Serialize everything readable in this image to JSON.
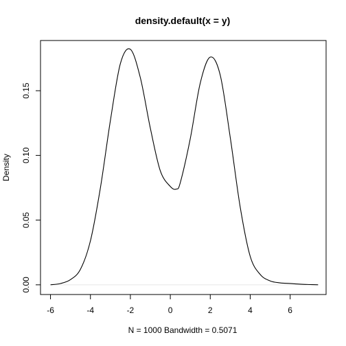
{
  "chart_data": {
    "type": "line",
    "title": "density.default(x = y)",
    "xlabel": "N = 1000   Bandwidth = 0.5071",
    "ylabel": "Density",
    "xlim": [
      -6.5,
      7.8
    ],
    "ylim": [
      -0.0075,
      0.1888
    ],
    "x_ticks": [
      -6,
      -4,
      -2,
      0,
      2,
      4,
      6
    ],
    "y_ticks": [
      0.0,
      0.05,
      0.1,
      0.15
    ],
    "x_tick_labels": [
      "-6",
      "-4",
      "-2",
      "0",
      "2",
      "4",
      "6"
    ],
    "y_tick_labels": [
      "0.00",
      "0.05",
      "0.10",
      "0.15"
    ],
    "grid": false,
    "line_color": "#000000",
    "zero_line_color": "#e8e8e8",
    "series": [
      {
        "x": [
          -6.0,
          -5.5,
          -5.0,
          -4.5,
          -4.0,
          -3.5,
          -3.0,
          -2.5,
          -2.0,
          -1.5,
          -1.0,
          -0.5,
          0.0,
          0.3,
          0.5,
          1.0,
          1.5,
          2.0,
          2.5,
          3.0,
          3.5,
          4.0,
          4.5,
          5.0,
          5.5,
          6.0,
          6.5,
          7.0,
          7.4
        ],
        "y": [
          0.0,
          0.001,
          0.004,
          0.012,
          0.034,
          0.075,
          0.127,
          0.171,
          0.182,
          0.16,
          0.121,
          0.088,
          0.076,
          0.074,
          0.079,
          0.113,
          0.156,
          0.176,
          0.162,
          0.114,
          0.06,
          0.022,
          0.008,
          0.003,
          0.0015,
          0.001,
          0.0005,
          0.0002,
          0.0
        ]
      }
    ]
  }
}
